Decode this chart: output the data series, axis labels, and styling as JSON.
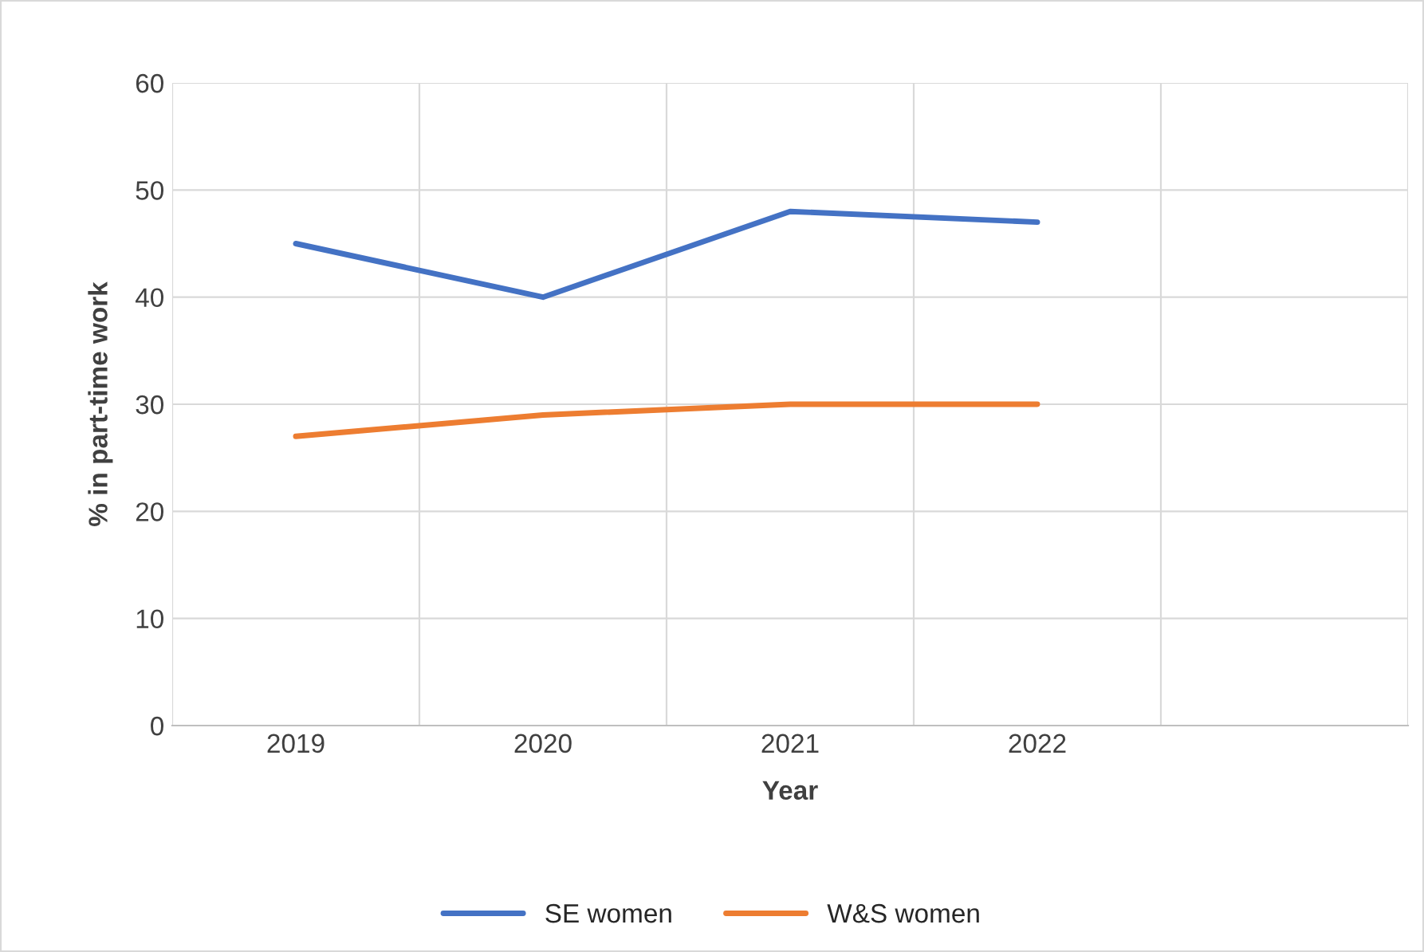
{
  "chart_data": {
    "type": "line",
    "xlabel": "Year",
    "ylabel": "% in part-time work",
    "categories": [
      "2019",
      "2020",
      "2021",
      "2022",
      null
    ],
    "series": [
      {
        "name": "SE women",
        "color": "#4472c4",
        "values": [
          45,
          40,
          48,
          47,
          null
        ]
      },
      {
        "name": "W&S women",
        "color": "#ed7d31",
        "values": [
          27,
          29,
          30,
          30,
          null
        ]
      }
    ],
    "ylim": [
      0,
      60
    ],
    "yticks": [
      0,
      10,
      20,
      30,
      40,
      50,
      60
    ],
    "grid": true,
    "legend": "bottom",
    "marker": "none",
    "line_style": "solid"
  }
}
